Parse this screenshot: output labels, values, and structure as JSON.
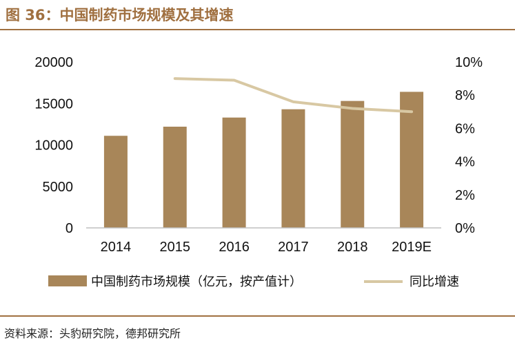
{
  "header": {
    "title": "图 36：中国制药市场规模及其增速"
  },
  "footer": {
    "source": "资料来源：头豹研究院，德邦研究所"
  },
  "colors": {
    "accent": "#a07040",
    "bar": "#a88659",
    "line": "#d8c8a3",
    "axis": "#bfbfbf"
  },
  "chart_data": {
    "type": "bar",
    "title": "中国制药市场规模及其增速",
    "categories": [
      "2014",
      "2015",
      "2016",
      "2017",
      "2018",
      "2019E"
    ],
    "series": [
      {
        "name": "中国制药市场规模（亿元，按产值计）",
        "type": "bar",
        "axis": "left",
        "values": [
          11100,
          12200,
          13300,
          14300,
          15300,
          16400
        ]
      },
      {
        "name": "同比增速",
        "type": "line",
        "axis": "right",
        "values": [
          null,
          9.0,
          8.9,
          7.6,
          7.2,
          7.0
        ]
      }
    ],
    "y_left": {
      "min": 0,
      "max": 20000,
      "ticks": [
        "0",
        "5000",
        "10000",
        "15000",
        "20000"
      ]
    },
    "y_right": {
      "min": 0,
      "max": 10,
      "ticks": [
        "0%",
        "2%",
        "4%",
        "6%",
        "8%",
        "10%"
      ]
    },
    "legend_position": "bottom",
    "grid": false
  }
}
